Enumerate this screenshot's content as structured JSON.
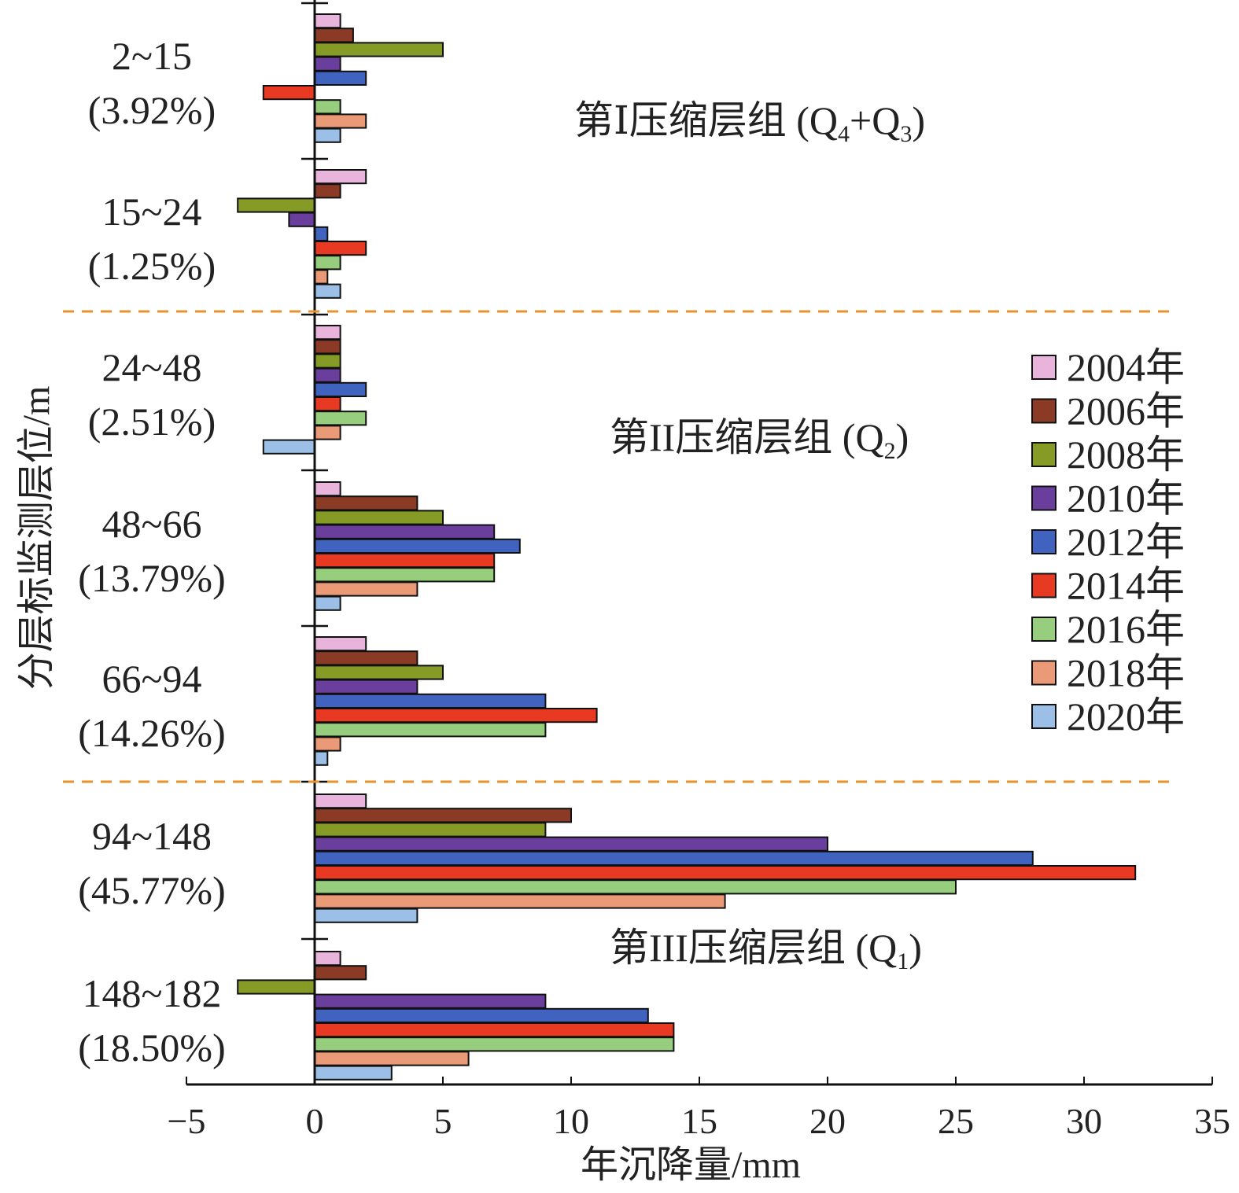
{
  "chart_data": {
    "type": "bar",
    "orientation": "horizontal",
    "xlabel": "年沉降量/mm",
    "ylabel": "分层标监测层位/m",
    "xlim": [
      -5,
      35
    ],
    "xticks": [
      "−5",
      "0",
      "5",
      "10",
      "15",
      "20",
      "25",
      "30",
      "35"
    ],
    "categories": [
      {
        "range": "2~15",
        "share": "(3.92%)"
      },
      {
        "range": "15~24",
        "share": "(1.25%)"
      },
      {
        "range": "24~48",
        "share": "(2.51%)"
      },
      {
        "range": "48~66",
        "share": "(13.79%)"
      },
      {
        "range": "66~94",
        "share": "(14.26%)"
      },
      {
        "range": "94~148",
        "share": "(45.77%)"
      },
      {
        "range": "148~182",
        "share": "(18.50%)"
      }
    ],
    "series": [
      {
        "name": "2004年",
        "color": "#E8B4DC",
        "values": [
          1,
          2,
          1,
          1,
          2,
          2,
          1
        ]
      },
      {
        "name": "2006年",
        "color": "#8B3A26",
        "values": [
          1.5,
          1,
          1,
          4,
          4,
          10,
          2
        ]
      },
      {
        "name": "2008年",
        "color": "#859B25",
        "values": [
          5,
          -3,
          1,
          5,
          5,
          9,
          -3
        ]
      },
      {
        "name": "2010年",
        "color": "#6A3E9C",
        "values": [
          1,
          -1,
          1,
          7,
          4,
          20,
          9
        ]
      },
      {
        "name": "2012年",
        "color": "#3F63BE",
        "values": [
          2,
          0.5,
          2,
          8,
          9,
          28,
          13
        ]
      },
      {
        "name": "2014年",
        "color": "#E83A22",
        "values": [
          -2,
          2,
          1,
          7,
          11,
          32,
          14
        ]
      },
      {
        "name": "2016年",
        "color": "#96CE7E",
        "values": [
          1,
          1,
          2,
          7,
          9,
          25,
          14
        ]
      },
      {
        "name": "2018年",
        "color": "#EB9A78",
        "values": [
          2,
          0.5,
          1,
          4,
          1,
          16,
          6
        ]
      },
      {
        "name": "2020年",
        "color": "#9BBFE6",
        "values": [
          1,
          1,
          -2,
          1,
          0.5,
          4,
          3
        ]
      }
    ],
    "group_annotations": [
      {
        "prefix": "第Ⅰ压缩层组 (Q",
        "parts": [
          {
            "sub": "4"
          },
          {
            "text": "+Q"
          },
          {
            "sub": "3"
          },
          {
            "text": ")"
          }
        ]
      },
      {
        "prefix": "第II压缩层组 (Q",
        "parts": [
          {
            "sub": "2"
          },
          {
            "text": ")"
          }
        ]
      },
      {
        "prefix": "第III压缩层组 (Q",
        "parts": [
          {
            "sub": "1"
          },
          {
            "text": ")"
          }
        ]
      }
    ],
    "divider_color": "#E8922E",
    "legend_position": "right"
  }
}
